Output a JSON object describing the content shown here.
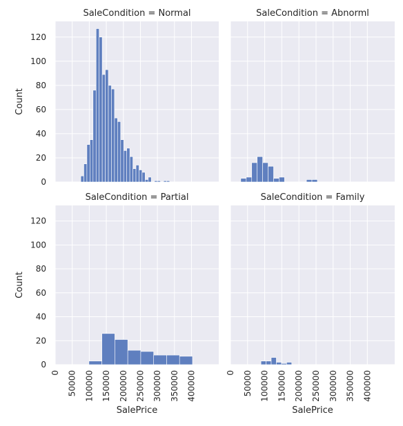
{
  "chart_data": {
    "type": "bar",
    "subtype": "histogram-facet-grid",
    "xlabel": "SalePrice",
    "ylabel": "Count",
    "xlim": [
      0,
      480000
    ],
    "ylim": [
      0,
      133
    ],
    "grid": true,
    "x_ticks": [
      0,
      50000,
      100000,
      150000,
      200000,
      250000,
      300000,
      350000,
      400000
    ],
    "y_ticks": [
      0,
      20,
      40,
      60,
      80,
      100,
      120
    ],
    "panels": [
      {
        "title": "SaleCondition = Normal",
        "bars": [
          {
            "x0": 75000,
            "x1": 84000,
            "count": 5
          },
          {
            "x0": 84000,
            "x1": 93000,
            "count": 15
          },
          {
            "x0": 93000,
            "x1": 102000,
            "count": 31
          },
          {
            "x0": 102000,
            "x1": 111000,
            "count": 35
          },
          {
            "x0": 111000,
            "x1": 120000,
            "count": 76
          },
          {
            "x0": 120000,
            "x1": 129000,
            "count": 127
          },
          {
            "x0": 129000,
            "x1": 138000,
            "count": 120
          },
          {
            "x0": 138000,
            "x1": 147000,
            "count": 89
          },
          {
            "x0": 147000,
            "x1": 156000,
            "count": 93
          },
          {
            "x0": 156000,
            "x1": 165000,
            "count": 80
          },
          {
            "x0": 165000,
            "x1": 174000,
            "count": 77
          },
          {
            "x0": 174000,
            "x1": 183000,
            "count": 53
          },
          {
            "x0": 183000,
            "x1": 192000,
            "count": 50
          },
          {
            "x0": 192000,
            "x1": 201000,
            "count": 35
          },
          {
            "x0": 201000,
            "x1": 210000,
            "count": 26
          },
          {
            "x0": 210000,
            "x1": 219000,
            "count": 28
          },
          {
            "x0": 219000,
            "x1": 228000,
            "count": 21
          },
          {
            "x0": 228000,
            "x1": 237000,
            "count": 11
          },
          {
            "x0": 237000,
            "x1": 246000,
            "count": 14
          },
          {
            "x0": 246000,
            "x1": 255000,
            "count": 10
          },
          {
            "x0": 255000,
            "x1": 264000,
            "count": 8
          },
          {
            "x0": 264000,
            "x1": 273000,
            "count": 2
          },
          {
            "x0": 273000,
            "x1": 282000,
            "count": 4
          },
          {
            "x0": 291000,
            "x1": 300000,
            "count": 1
          },
          {
            "x0": 300000,
            "x1": 309000,
            "count": 1
          },
          {
            "x0": 318000,
            "x1": 327000,
            "count": 1
          },
          {
            "x0": 327000,
            "x1": 336000,
            "count": 1
          }
        ]
      },
      {
        "title": "SaleCondition = Abnorml",
        "bars": [
          {
            "x0": 30000,
            "x1": 46000,
            "count": 3
          },
          {
            "x0": 46000,
            "x1": 62000,
            "count": 4
          },
          {
            "x0": 62000,
            "x1": 78000,
            "count": 16
          },
          {
            "x0": 78000,
            "x1": 94000,
            "count": 21
          },
          {
            "x0": 94000,
            "x1": 110000,
            "count": 16
          },
          {
            "x0": 110000,
            "x1": 126000,
            "count": 13
          },
          {
            "x0": 126000,
            "x1": 142000,
            "count": 3
          },
          {
            "x0": 142000,
            "x1": 158000,
            "count": 4
          },
          {
            "x0": 222000,
            "x1": 238000,
            "count": 2
          },
          {
            "x0": 238000,
            "x1": 254000,
            "count": 2
          }
        ]
      },
      {
        "title": "SaleCondition = Partial",
        "bars": [
          {
            "x0": 99000,
            "x1": 137000,
            "count": 3
          },
          {
            "x0": 137000,
            "x1": 175000,
            "count": 26
          },
          {
            "x0": 175000,
            "x1": 213000,
            "count": 21
          },
          {
            "x0": 213000,
            "x1": 251000,
            "count": 12
          },
          {
            "x0": 251000,
            "x1": 289000,
            "count": 11
          },
          {
            "x0": 289000,
            "x1": 327000,
            "count": 8
          },
          {
            "x0": 327000,
            "x1": 365000,
            "count": 8
          },
          {
            "x0": 365000,
            "x1": 403000,
            "count": 7
          }
        ]
      },
      {
        "title": "SaleCondition = Family",
        "bars": [
          {
            "x0": 89000,
            "x1": 104000,
            "count": 3
          },
          {
            "x0": 104000,
            "x1": 119000,
            "count": 3
          },
          {
            "x0": 119000,
            "x1": 134000,
            "count": 6
          },
          {
            "x0": 134000,
            "x1": 149000,
            "count": 2
          },
          {
            "x0": 149000,
            "x1": 164000,
            "count": 1
          },
          {
            "x0": 164000,
            "x1": 179000,
            "count": 2
          }
        ]
      }
    ]
  }
}
